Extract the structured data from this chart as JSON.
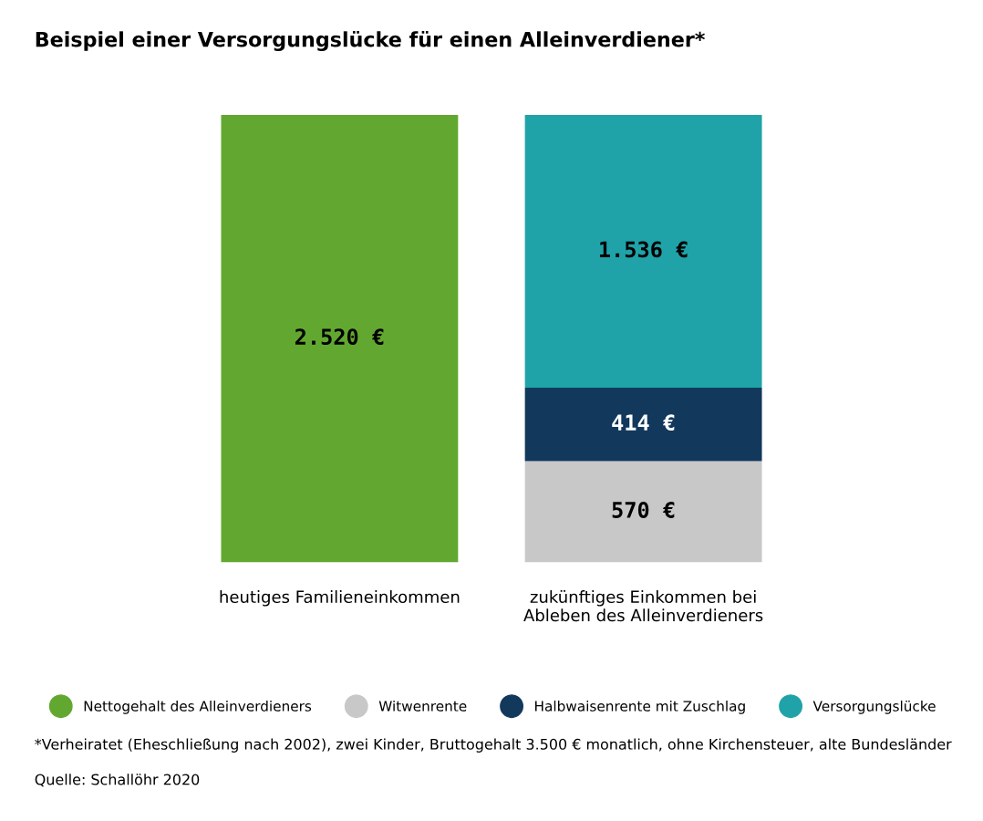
{
  "chart_data": {
    "type": "bar",
    "title": "Beispiel einer Versorgungslücke für einen Alleinverdiener*",
    "categories": [
      "heutiges Familieneinkommen",
      "zukünftiges Einkommen bei\nAbleben des Alleinverdieners"
    ],
    "stacked": true,
    "series": [
      {
        "name": "Nettogehalt des Alleinverdieners",
        "color": "#62a830",
        "values": [
          2520,
          null
        ],
        "value_labels": [
          "2.520 €",
          null
        ]
      },
      {
        "name": "Witwenrente",
        "color": "#c8c8c8",
        "values": [
          null,
          570
        ],
        "value_labels": [
          null,
          "570 €"
        ]
      },
      {
        "name": "Halbwaisenrente mit Zuschlag",
        "color": "#12385c",
        "values": [
          null,
          414
        ],
        "value_labels": [
          null,
          "414 €"
        ]
      },
      {
        "name": "Versorgungslücke",
        "color": "#1fa3a8",
        "values": [
          null,
          1536
        ],
        "value_labels": [
          null,
          "1.536 €"
        ]
      }
    ],
    "legend": "bottom",
    "grid": false,
    "annotations": [
      "*Verheiratet (Eheschließung nach 2002), zwei Kinder, Bruttogehalt 3.500 € monatlich, ohne Kirchensteuer, alte Bundesländer",
      "Quelle: Schallöhr 2020"
    ]
  }
}
